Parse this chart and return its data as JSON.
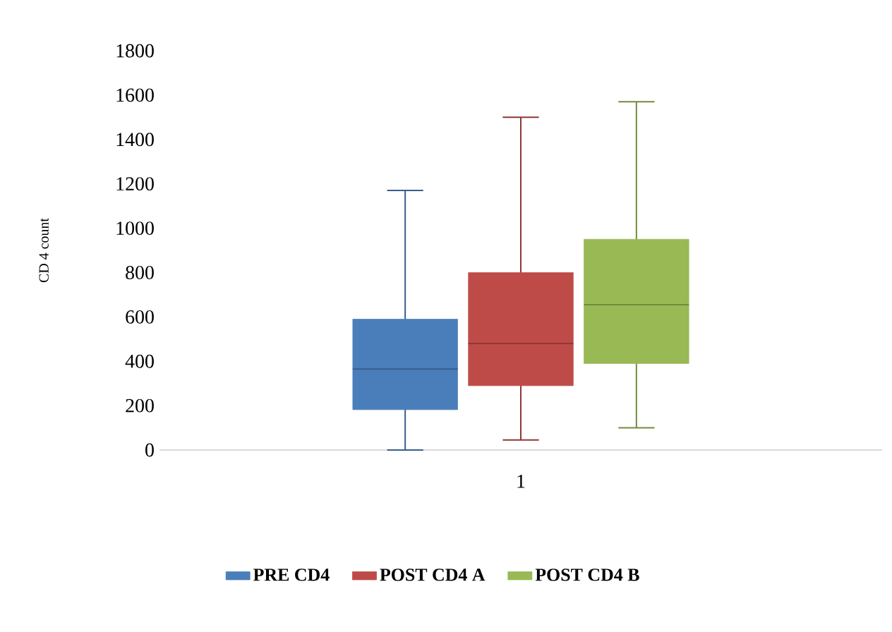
{
  "chart_data": {
    "type": "box",
    "ylabel": "CD 4 count",
    "categories": [
      "1"
    ],
    "series": [
      {
        "name": "PRE CD4",
        "color": "#4a7ebb",
        "boxes": [
          {
            "low": 0,
            "q1": 182,
            "median": 365,
            "q3": 590,
            "high": 1170
          }
        ]
      },
      {
        "name": "POST CD4 A",
        "color": "#be4b48",
        "boxes": [
          {
            "low": 45,
            "q1": 290,
            "median": 480,
            "q3": 800,
            "high": 1500
          }
        ]
      },
      {
        "name": "POST CD4 B",
        "color": "#98b954",
        "boxes": [
          {
            "low": 100,
            "q1": 390,
            "median": 655,
            "q3": 950,
            "high": 1570
          }
        ]
      }
    ],
    "ylim": [
      0,
      1800
    ],
    "yticks": [
      0,
      200,
      400,
      600,
      800,
      1000,
      1200,
      1400,
      1600,
      1800
    ],
    "legend": "bottom",
    "grid": false
  }
}
